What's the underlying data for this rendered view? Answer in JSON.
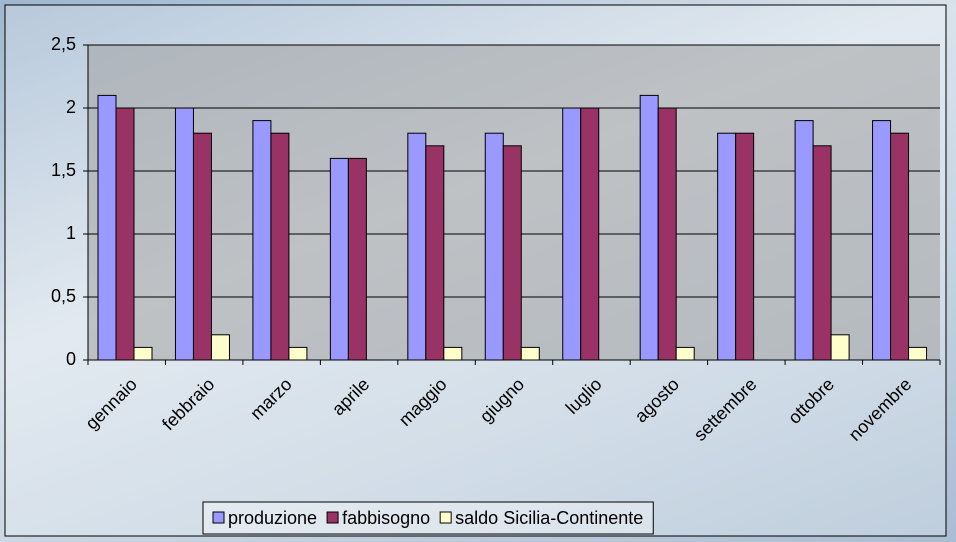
{
  "chart_data": {
    "type": "bar",
    "categories": [
      "gennaio",
      "febbraio",
      "marzo",
      "aprile",
      "maggio",
      "giugno",
      "luglio",
      "agosto",
      "settembre",
      "ottobre",
      "novembre"
    ],
    "series": [
      {
        "name": "produzione",
        "color": "#9999ff",
        "values": [
          2.1,
          2.0,
          1.9,
          1.6,
          1.8,
          1.8,
          2.0,
          2.1,
          1.8,
          1.9,
          1.9
        ]
      },
      {
        "name": "fabbisogno",
        "color": "#993366",
        "values": [
          2.0,
          1.8,
          1.8,
          1.6,
          1.7,
          1.7,
          2.0,
          2.0,
          1.8,
          1.7,
          1.8
        ]
      },
      {
        "name": "saldo Sicilia-Continente",
        "color": "#ffffcc",
        "values": [
          0.1,
          0.2,
          0.1,
          0,
          0.1,
          0.1,
          0,
          0.1,
          0,
          0.2,
          0.1
        ]
      }
    ],
    "ylim": [
      0,
      2.5
    ],
    "yticks": [
      0,
      {
        "value": 0.5,
        "label": "0,5"
      },
      1,
      {
        "value": 1.5,
        "label": "1,5"
      },
      2,
      {
        "value": 2.5,
        "label": "2,5"
      }
    ],
    "grid": true,
    "legend": "bottom"
  }
}
